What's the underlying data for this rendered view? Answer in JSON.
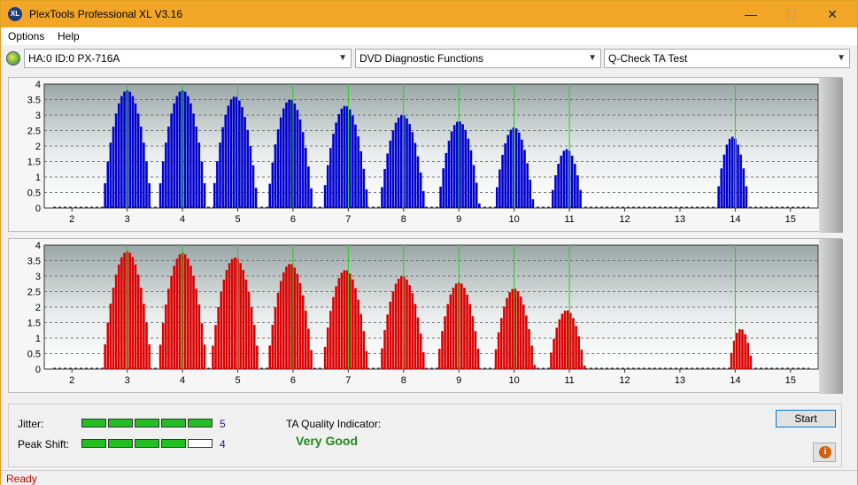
{
  "window": {
    "title": "PlexTools Professional XL V3.16",
    "icon_label": "XL",
    "controls": {
      "minimize": "—",
      "maximize": "☐",
      "close": "✕"
    }
  },
  "menu": {
    "options": "Options",
    "help": "Help"
  },
  "toolbar": {
    "drive": "HA:0 ID:0  PX-716A",
    "function": "DVD Diagnostic Functions",
    "test": "Q-Check TA Test"
  },
  "chart_data": [
    {
      "type": "bar",
      "title": "",
      "color": "#0000d0",
      "xlim": [
        1.5,
        15.5
      ],
      "ylim": [
        0,
        4
      ],
      "x_ticks": [
        2,
        3,
        4,
        5,
        6,
        7,
        8,
        9,
        10,
        11,
        12,
        13,
        14,
        15
      ],
      "y_ticks": [
        "0",
        "0.5",
        "1",
        "1.5",
        "2",
        "2.5",
        "3",
        "3.5",
        "4"
      ],
      "reference_lines": [
        3,
        4,
        5,
        6,
        7,
        8,
        9,
        10,
        11,
        14
      ],
      "peaks": [
        {
          "center": 3.0,
          "height": 3.8,
          "halfwidth": 0.45
        },
        {
          "center": 4.0,
          "height": 3.8,
          "halfwidth": 0.45
        },
        {
          "center": 4.95,
          "height": 3.6,
          "halfwidth": 0.42
        },
        {
          "center": 5.95,
          "height": 3.5,
          "halfwidth": 0.42
        },
        {
          "center": 6.95,
          "height": 3.3,
          "halfwidth": 0.42
        },
        {
          "center": 7.98,
          "height": 3.0,
          "halfwidth": 0.42
        },
        {
          "center": 9.0,
          "height": 2.8,
          "halfwidth": 0.38
        },
        {
          "center": 10.0,
          "height": 2.6,
          "halfwidth": 0.36
        },
        {
          "center": 10.95,
          "height": 1.9,
          "halfwidth": 0.3
        },
        {
          "center": 13.95,
          "height": 2.3,
          "halfwidth": 0.3
        }
      ]
    },
    {
      "type": "bar",
      "title": "",
      "color": "#dd0000",
      "xlim": [
        1.5,
        15.5
      ],
      "ylim": [
        0,
        4
      ],
      "x_ticks": [
        2,
        3,
        4,
        5,
        6,
        7,
        8,
        9,
        10,
        11,
        12,
        13,
        14,
        15
      ],
      "y_ticks": [
        "0",
        "0.5",
        "1",
        "1.5",
        "2",
        "2.5",
        "3",
        "3.5",
        "4"
      ],
      "reference_lines": [
        3,
        4,
        5,
        6,
        7,
        8,
        9,
        10,
        11,
        14
      ],
      "peaks": [
        {
          "center": 3.0,
          "height": 3.8,
          "halfwidth": 0.45
        },
        {
          "center": 4.0,
          "height": 3.75,
          "halfwidth": 0.45
        },
        {
          "center": 4.95,
          "height": 3.6,
          "halfwidth": 0.45
        },
        {
          "center": 5.95,
          "height": 3.4,
          "halfwidth": 0.42
        },
        {
          "center": 6.95,
          "height": 3.2,
          "halfwidth": 0.42
        },
        {
          "center": 7.98,
          "height": 3.0,
          "halfwidth": 0.42
        },
        {
          "center": 9.0,
          "height": 2.8,
          "halfwidth": 0.4
        },
        {
          "center": 10.0,
          "height": 2.6,
          "halfwidth": 0.38
        },
        {
          "center": 10.95,
          "height": 1.9,
          "halfwidth": 0.33
        },
        {
          "center": 14.1,
          "height": 1.3,
          "halfwidth": 0.22
        }
      ]
    }
  ],
  "metrics": {
    "jitter_label": "Jitter:",
    "jitter_value": "5",
    "jitter_level": 5,
    "peak_shift_label": "Peak Shift:",
    "peak_shift_value": "4",
    "peak_shift_level": 4,
    "max_level": 5,
    "level_on_color": "#20c020",
    "level_off_color": "#ffffff"
  },
  "quality": {
    "label": "TA Quality Indicator:",
    "value": "Very Good"
  },
  "buttons": {
    "start": "Start",
    "info_glyph": "i"
  },
  "status": {
    "text": "Ready"
  }
}
